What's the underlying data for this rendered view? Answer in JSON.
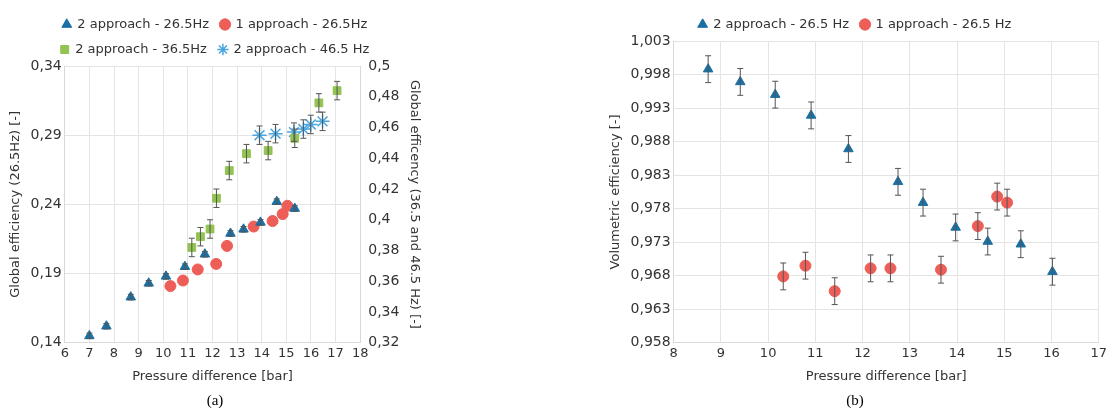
{
  "chart_data": [
    {
      "type": "scatter",
      "xlabel": "Pressure difference [bar]",
      "ylabel": "Global efficiency (26.5Hz) [-]",
      "y2label": "Global efficency (36.5 and 46.5 Hz) [-]",
      "annotations": [
        "(a)"
      ],
      "legend": "top",
      "grid": true,
      "xlim": [
        6,
        18
      ],
      "xticks": [
        6,
        7,
        8,
        9,
        10,
        11,
        12,
        13,
        14,
        15,
        16,
        17,
        18
      ],
      "ylim": [
        0.14,
        0.34
      ],
      "yticks": [
        {
          "value": 0.14,
          "label": "0,14"
        },
        {
          "value": 0.19,
          "label": "0,19"
        },
        {
          "value": 0.24,
          "label": "0,24"
        },
        {
          "value": 0.29,
          "label": "0,29"
        },
        {
          "value": 0.34,
          "label": "0,34"
        }
      ],
      "y2lim": [
        0.32,
        0.5
      ],
      "y2ticks": [
        {
          "value": 0.32,
          "label": "0,32"
        },
        {
          "value": 0.34,
          "label": "0,34"
        },
        {
          "value": 0.36,
          "label": "0,36"
        },
        {
          "value": 0.38,
          "label": "0,38"
        },
        {
          "value": 0.4,
          "label": "0,4"
        },
        {
          "value": 0.42,
          "label": "0,42"
        },
        {
          "value": 0.44,
          "label": "0,44"
        },
        {
          "value": 0.46,
          "label": "0,46"
        },
        {
          "value": 0.48,
          "label": "0,48"
        },
        {
          "value": 0.5,
          "label": "0,5"
        }
      ],
      "series": [
        {
          "name": "2 approach - 26.5Hz",
          "color": "#1a6fa3",
          "marker": "triangle",
          "x": [
            7.0,
            7.69,
            8.68,
            9.41,
            10.11,
            10.88,
            11.69,
            12.73,
            13.26,
            13.95,
            14.61,
            15.34
          ],
          "values": [
            0.145,
            0.152,
            0.173,
            0.183,
            0.188,
            0.195,
            0.204,
            0.219,
            0.222,
            0.227,
            0.242,
            0.237
          ],
          "errors": [
            0.002,
            0.002,
            0.002,
            0.002,
            0.002,
            0.002,
            0.002,
            0.002,
            0.002,
            0.002,
            0.002,
            0.002
          ]
        },
        {
          "name": "1 approach - 26.5Hz",
          "color": "#ee5e58",
          "marker": "circle",
          "x": [
            10.29,
            10.8,
            11.4,
            12.15,
            12.59,
            13.67,
            14.44,
            14.85,
            15.04
          ],
          "values": [
            0.181,
            0.185,
            0.193,
            0.197,
            0.21,
            0.224,
            0.228,
            0.233,
            0.239
          ]
        },
        {
          "name": "2 approach - 36.5Hz",
          "color": "#92c353",
          "marker": "square",
          "axis": "y2",
          "x": [
            11.16,
            11.51,
            11.9,
            12.16,
            12.68,
            13.38,
            14.26,
            15.34,
            16.32,
            17.06
          ],
          "values": [
            0.382,
            0.389,
            0.394,
            0.414,
            0.432,
            0.443,
            0.445,
            0.453,
            0.476,
            0.484
          ],
          "errors": [
            0.006,
            0.006,
            0.006,
            0.006,
            0.006,
            0.006,
            0.006,
            0.006,
            0.006,
            0.006
          ]
        },
        {
          "name": "2 approach - 46.5 Hz",
          "color": "#4aa6de",
          "marker": "cross",
          "axis": "y2",
          "x": [
            13.91,
            14.56,
            15.31,
            15.69,
            15.99,
            16.47
          ],
          "values": [
            0.455,
            0.456,
            0.457,
            0.459,
            0.462,
            0.464
          ],
          "errors": [
            0.006,
            0.006,
            0.006,
            0.006,
            0.006,
            0.006
          ]
        }
      ]
    },
    {
      "type": "scatter",
      "xlabel": "Pressure difference [bar]",
      "ylabel": "Volumetric efficiency [-]",
      "annotations": [
        "(b)"
      ],
      "legend": "top",
      "grid": true,
      "xlim": [
        8,
        17
      ],
      "xticks": [
        8,
        9,
        10,
        11,
        12,
        13,
        14,
        15,
        16,
        17
      ],
      "ylim": [
        0.958,
        1.003
      ],
      "yticks": [
        {
          "value": 0.958,
          "label": "0,958"
        },
        {
          "value": 0.963,
          "label": "0,963"
        },
        {
          "value": 0.968,
          "label": "0,968"
        },
        {
          "value": 0.973,
          "label": "0,973"
        },
        {
          "value": 0.978,
          "label": "0,978"
        },
        {
          "value": 0.983,
          "label": "0,983"
        },
        {
          "value": 0.988,
          "label": "0,988"
        },
        {
          "value": 0.993,
          "label": "0,993"
        },
        {
          "value": 0.998,
          "label": "0,998"
        },
        {
          "value": 1.003,
          "label": "1,003"
        }
      ],
      "series": [
        {
          "name": "2 approach - 26.5 Hz",
          "color": "#1a6fa3",
          "marker": "triangle",
          "x": [
            8.73,
            9.41,
            10.15,
            10.91,
            11.7,
            12.75,
            13.28,
            13.97,
            14.65,
            15.35,
            16.02
          ],
          "values": [
            0.9988,
            0.9969,
            0.995,
            0.9919,
            0.9869,
            0.982,
            0.9789,
            0.9752,
            0.9731,
            0.9727,
            0.9686
          ],
          "errors": [
            0.002,
            0.002,
            0.002,
            0.002,
            0.002,
            0.002,
            0.002,
            0.002,
            0.002,
            0.002,
            0.002
          ]
        },
        {
          "name": "1 approach - 26.5 Hz",
          "color": "#ee5e58",
          "marker": "circle",
          "x": [
            10.32,
            10.79,
            11.41,
            12.17,
            12.59,
            13.66,
            14.44,
            14.85,
            15.06
          ],
          "values": [
            0.9679,
            0.9695,
            0.9657,
            0.9691,
            0.9691,
            0.9689,
            0.9754,
            0.9798,
            0.9789
          ],
          "errors": [
            0.002,
            0.002,
            0.002,
            0.002,
            0.002,
            0.002,
            0.002,
            0.002,
            0.002
          ]
        }
      ]
    }
  ]
}
